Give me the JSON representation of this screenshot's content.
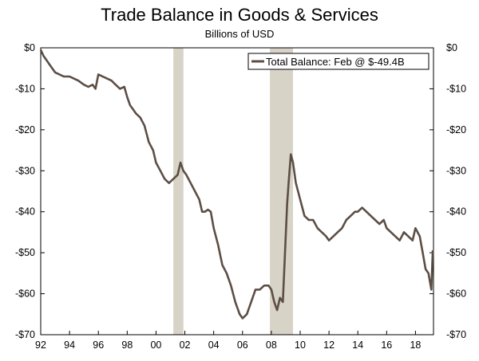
{
  "chart_data": {
    "type": "line",
    "title": "Trade Balance in Goods & Services",
    "subtitle": "Billions of USD",
    "xlabel": "",
    "ylabel": "",
    "x_range": [
      1992.0,
      2019.25
    ],
    "ylim": [
      -70,
      0
    ],
    "x_tick_values": [
      1992,
      1994,
      1996,
      1998,
      2000,
      2002,
      2004,
      2006,
      2008,
      2010,
      2012,
      2014,
      2016,
      2018
    ],
    "x_tick_labels": [
      "92",
      "94",
      "96",
      "98",
      "00",
      "02",
      "04",
      "06",
      "08",
      "10",
      "12",
      "14",
      "16",
      "18"
    ],
    "y_tick_values": [
      0,
      -10,
      -20,
      -30,
      -40,
      -50,
      -60,
      -70
    ],
    "y_tick_labels": [
      "$0",
      "-$10",
      "-$20",
      "-$30",
      "-$40",
      "-$50",
      "-$60",
      "-$70"
    ],
    "y_tick_labels_right": [
      "$0",
      "-$10",
      "-$20",
      "-$30",
      "-$40",
      "-$50",
      "-$60",
      "-$70"
    ],
    "grid": false,
    "legend_position": "top-right",
    "recession_shading": [
      {
        "start": 2001.2,
        "end": 2001.9
      },
      {
        "start": 2007.9,
        "end": 2009.5
      }
    ],
    "series": [
      {
        "name": "Total Balance: Feb @ $-49.4B",
        "color": "#5c4e45",
        "x": [
          1992.0,
          1992.2,
          1992.4,
          1992.6,
          1992.8,
          1993.0,
          1993.3,
          1993.6,
          1994.0,
          1994.3,
          1994.6,
          1995.0,
          1995.3,
          1995.6,
          1995.8,
          1996.0,
          1996.3,
          1996.6,
          1996.9,
          1997.2,
          1997.5,
          1997.8,
          1998.0,
          1998.2,
          1998.4,
          1998.6,
          1998.9,
          1999.2,
          1999.5,
          1999.8,
          2000.0,
          2000.3,
          2000.6,
          2000.9,
          2001.2,
          2001.5,
          2001.7,
          2001.9,
          2002.1,
          2002.4,
          2002.7,
          2003.0,
          2003.2,
          2003.4,
          2003.6,
          2003.8,
          2004.0,
          2004.3,
          2004.6,
          2004.9,
          2005.2,
          2005.5,
          2005.8,
          2006.0,
          2006.3,
          2006.6,
          2006.9,
          2007.2,
          2007.5,
          2007.8,
          2008.0,
          2008.2,
          2008.4,
          2008.6,
          2008.8,
          2009.0,
          2009.1,
          2009.2,
          2009.35,
          2009.5,
          2009.7,
          2010.0,
          2010.3,
          2010.6,
          2010.9,
          2011.2,
          2011.5,
          2011.8,
          2012.0,
          2012.3,
          2012.6,
          2012.9,
          2013.2,
          2013.5,
          2013.8,
          2014.0,
          2014.3,
          2014.6,
          2014.9,
          2015.2,
          2015.5,
          2015.8,
          2016.0,
          2016.3,
          2016.6,
          2016.9,
          2017.2,
          2017.5,
          2017.8,
          2018.0,
          2018.3,
          2018.5,
          2018.7,
          2018.9,
          2019.0,
          2019.1,
          2019.2
        ],
        "y": [
          -0.5,
          -2,
          -3,
          -4,
          -5,
          -6,
          -6.5,
          -7,
          -7,
          -7.5,
          -8,
          -9,
          -9.5,
          -9,
          -10,
          -6.5,
          -7,
          -7.5,
          -8,
          -9,
          -10,
          -9.5,
          -12,
          -14,
          -15,
          -16,
          -17,
          -19,
          -23,
          -25,
          -28,
          -30,
          -32,
          -33,
          -32,
          -31,
          -28,
          -30,
          -31,
          -33,
          -35,
          -37,
          -40,
          -40,
          -39.5,
          -40,
          -44,
          -48,
          -53,
          -55,
          -58,
          -62,
          -65,
          -66,
          -65,
          -62,
          -59,
          -59,
          -58,
          -58,
          -59,
          -62,
          -64,
          -61,
          -62,
          -46,
          -38,
          -33,
          -26,
          -28,
          -33,
          -37,
          -41,
          -42,
          -42,
          -44,
          -45,
          -46,
          -47,
          -46,
          -45,
          -44,
          -42,
          -41,
          -40,
          -40,
          -39,
          -40,
          -41,
          -42,
          -43,
          -42,
          -44,
          -45,
          -46,
          -47,
          -45,
          -46,
          -47,
          -44,
          -46,
          -50,
          -54,
          -55,
          -57,
          -59,
          -49.4
        ]
      }
    ]
  }
}
